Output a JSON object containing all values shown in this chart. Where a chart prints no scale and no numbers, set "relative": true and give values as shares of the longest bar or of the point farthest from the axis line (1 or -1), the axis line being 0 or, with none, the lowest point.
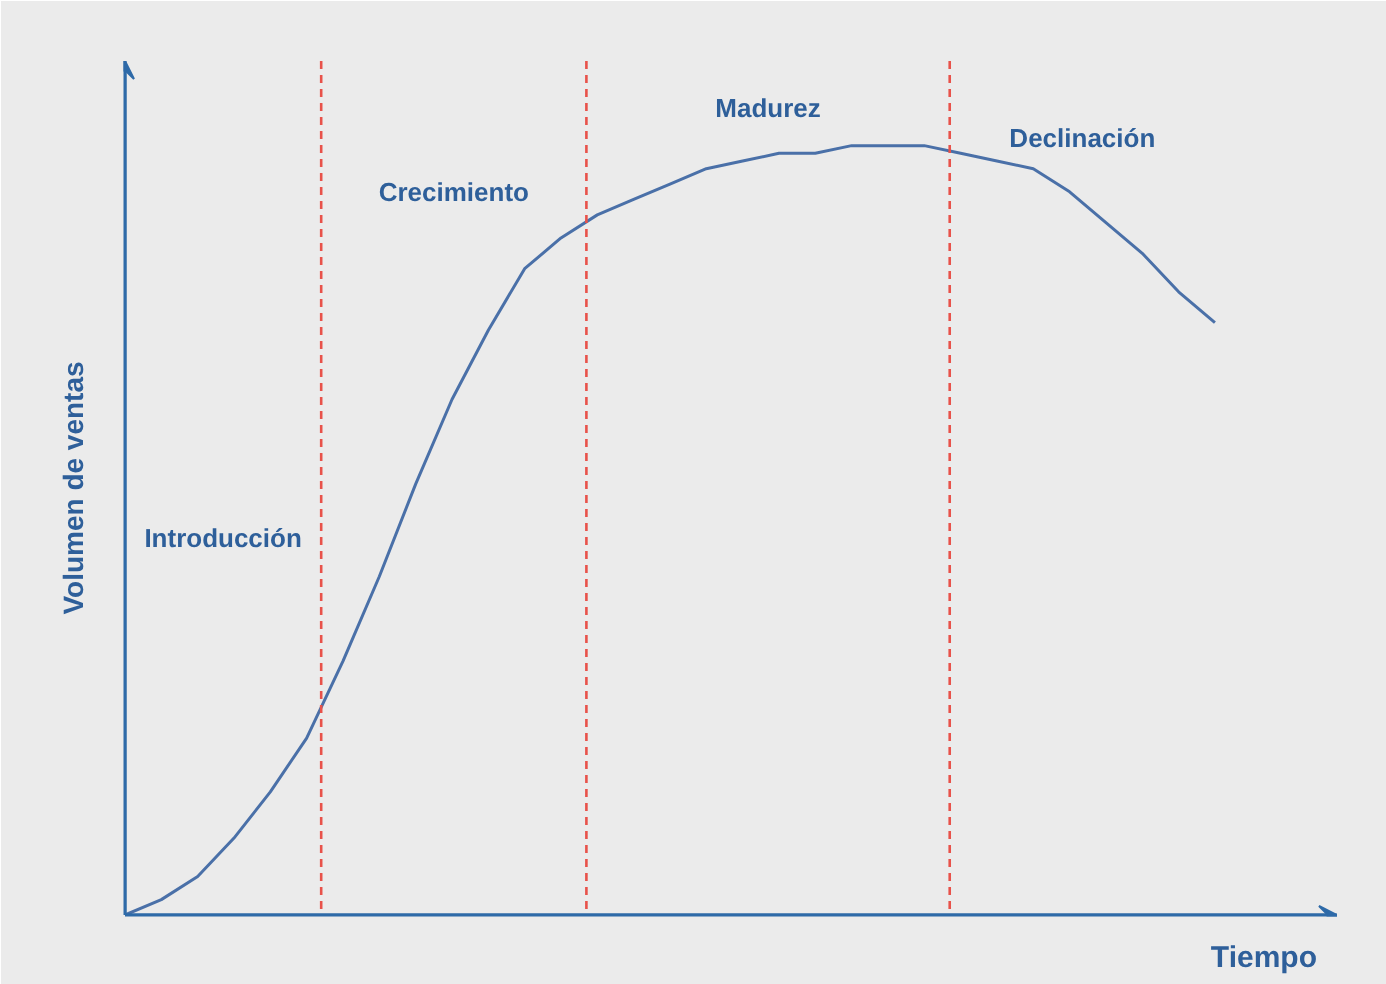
{
  "chart_data": {
    "type": "line",
    "relative": true,
    "xlabel": "Tiempo",
    "ylabel": "Volumen de ventas",
    "categories": [
      null,
      null,
      null,
      null,
      null,
      null,
      null,
      null,
      null,
      null,
      null,
      null,
      null,
      null,
      null,
      null,
      null,
      null,
      null,
      null,
      null,
      null,
      null,
      null,
      null,
      null,
      null,
      null,
      null,
      null,
      null
    ],
    "series": [
      {
        "color": "#4a70a8",
        "values": [
          0,
          0.02,
          0.05,
          0.1,
          0.16,
          0.23,
          0.33,
          0.44,
          0.56,
          0.67,
          0.76,
          0.84,
          0.88,
          0.91,
          0.93,
          0.95,
          0.97,
          0.98,
          0.99,
          0.99,
          1,
          1,
          1,
          0.99,
          0.98,
          0.97,
          0.94,
          0.9,
          0.86,
          0.81,
          0.77
        ]
      }
    ],
    "annotations": [
      "Introducción",
      "Crecimiento",
      "Madurez",
      "Declinación"
    ],
    "grid": false,
    "marker": "none",
    "line_style": "solid"
  }
}
